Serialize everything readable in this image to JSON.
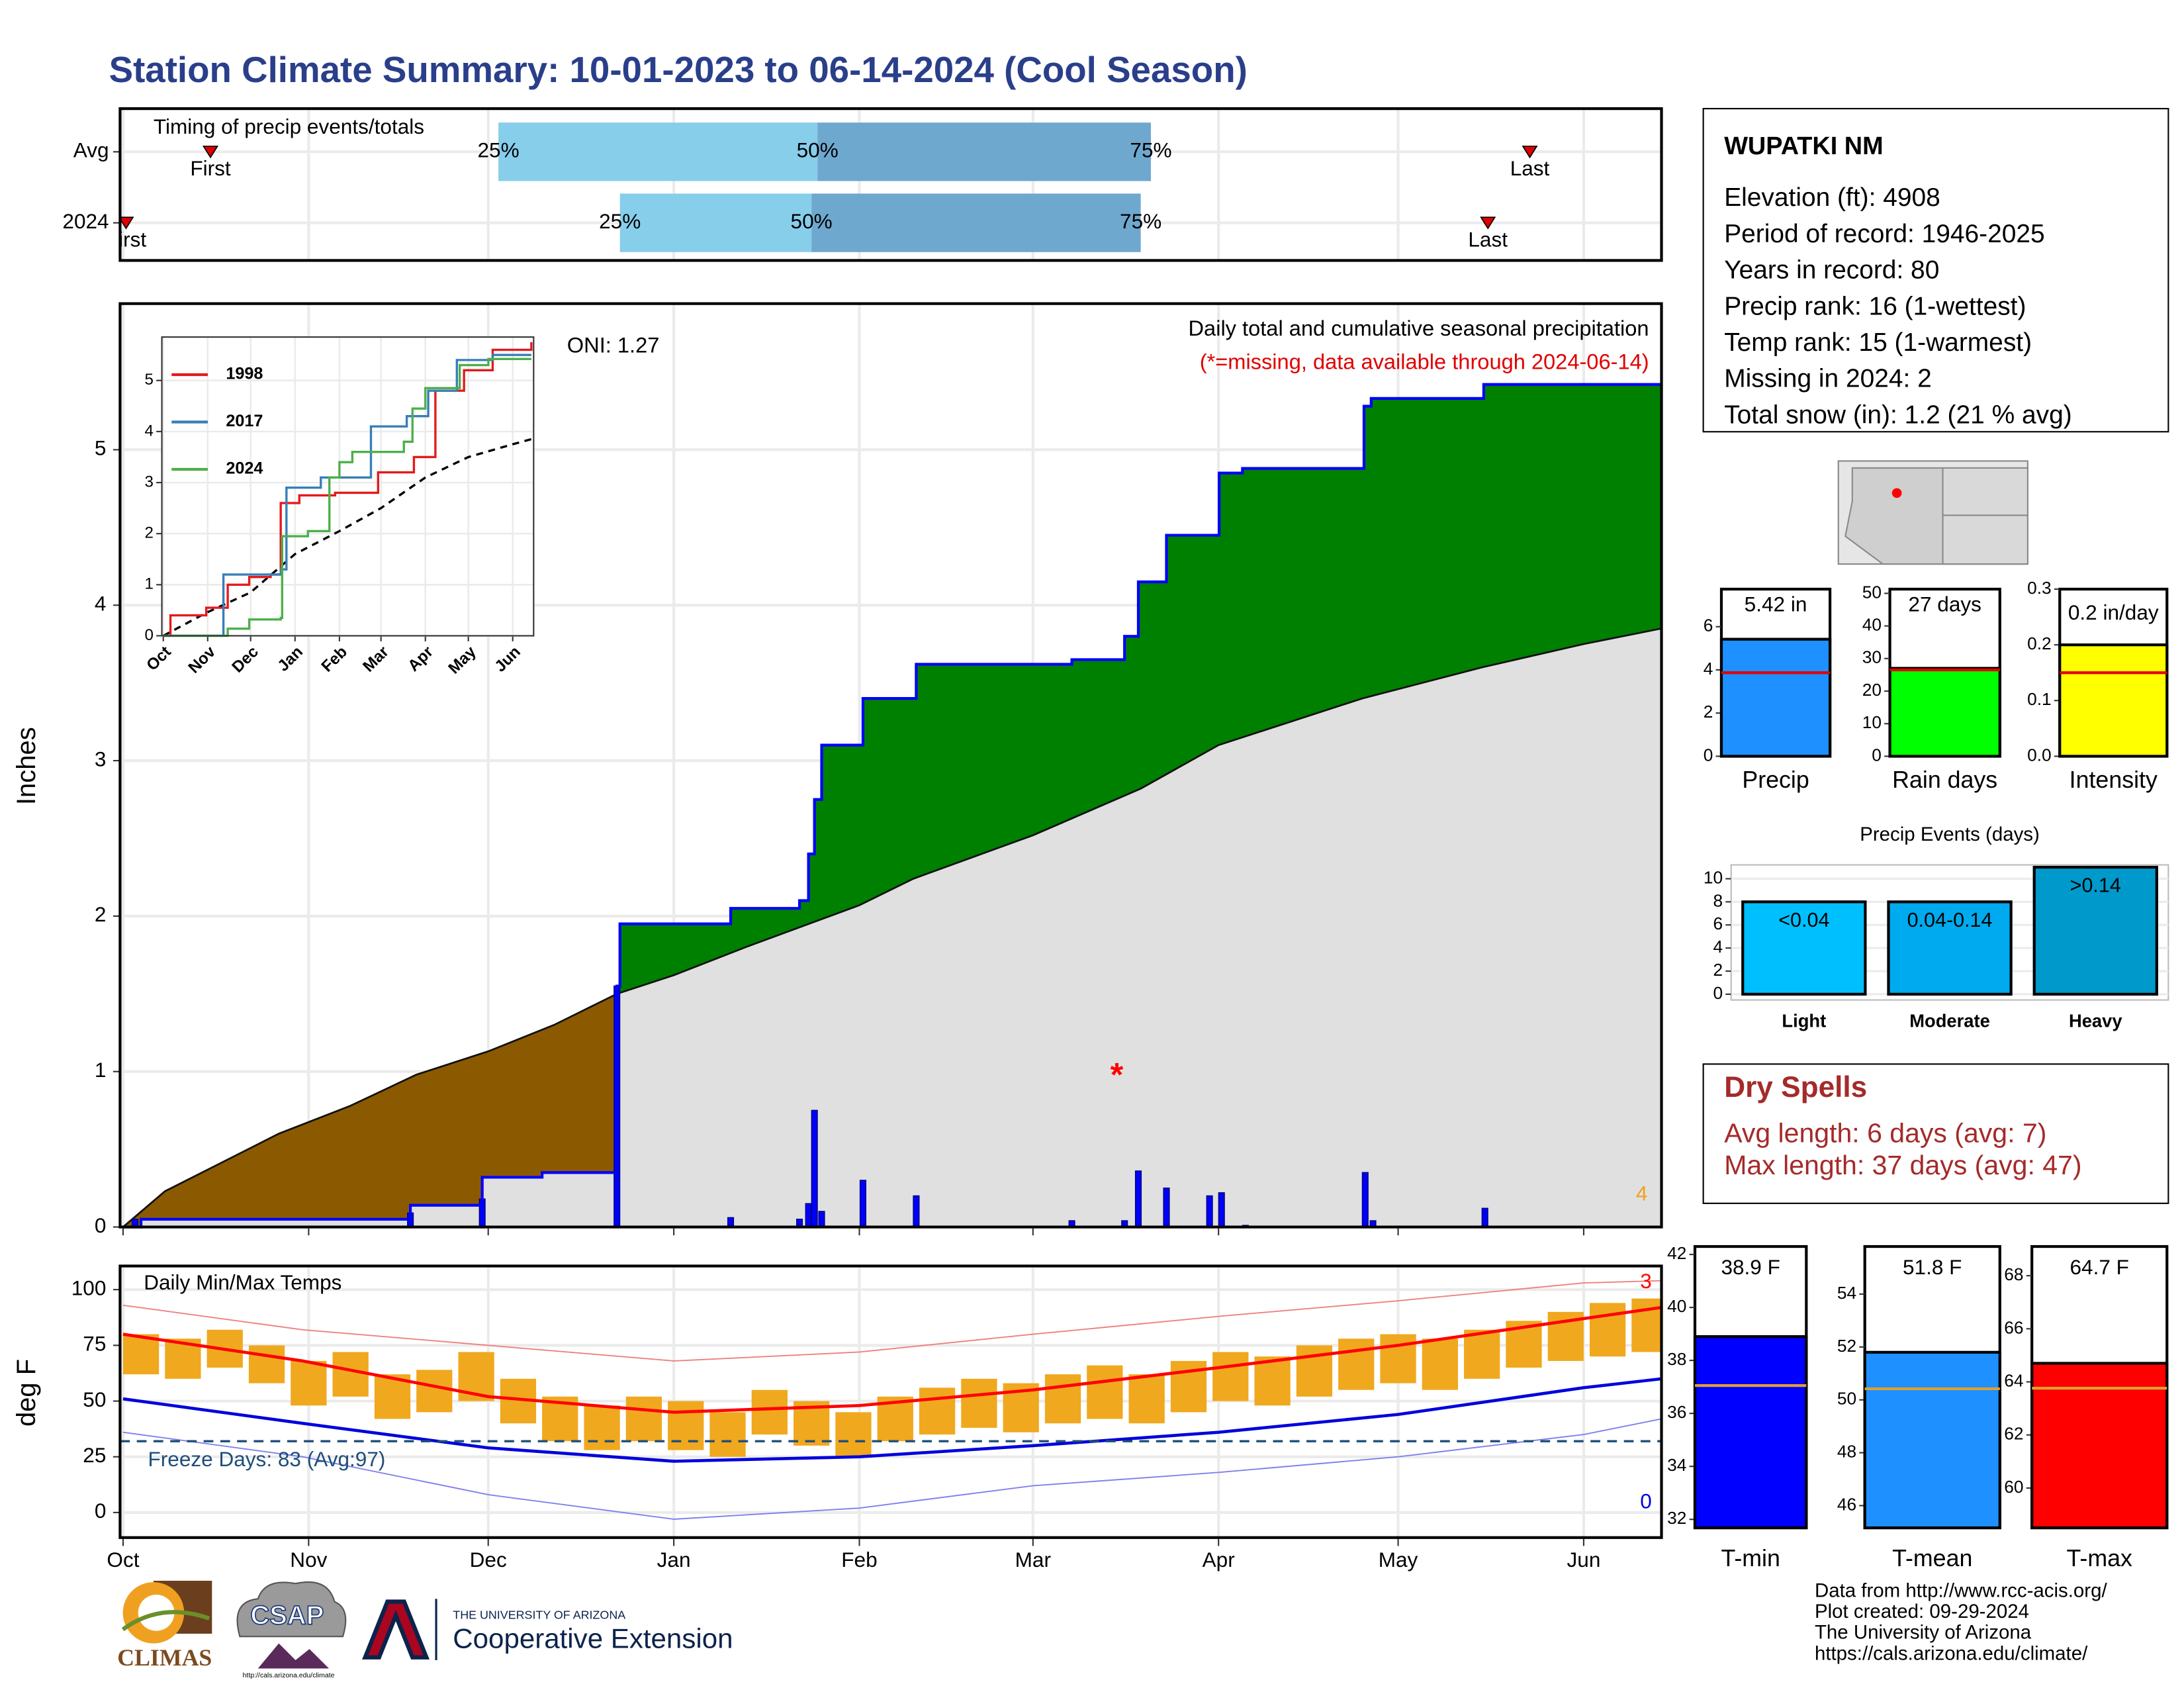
{
  "title": "Station Climate Summary: 10-01-2023 to 06-14-2024 (Cool Season)",
  "chart_data": [
    {
      "type": "range",
      "title": "Timing of precip events/totals",
      "categories": [
        "Avg",
        "2024"
      ],
      "first": [
        14.6,
        0.5
      ],
      "q25": [
        62.7,
        83
      ],
      "q50": [
        116,
        115
      ],
      "q75": [
        171.7,
        170
      ],
      "last": [
        235,
        228
      ],
      "labels": {
        "first": "First",
        "last": "Last",
        "q25": "25%",
        "q50": "50%",
        "q75": "75%"
      },
      "colors": {
        "low": "#87ceeb",
        "high": "#6fa8cf",
        "marker": "#e00000"
      },
      "xlim": [
        -0.5,
        257
      ],
      "xticks": [
        0,
        31,
        61,
        92,
        123,
        152,
        183,
        213,
        244
      ],
      "grid": true
    },
    {
      "type": "area",
      "title": "Daily total and cumulative seasonal precipitation",
      "subtitle": "(*=missing, data available through 2024-06-14)",
      "ylabel": "Inches",
      "annotation": "ONI: 1.27",
      "corner_note": "4",
      "xlim": [
        -0.5,
        257
      ],
      "xticks": [
        0,
        31,
        61,
        92,
        123,
        152,
        183,
        213,
        244
      ],
      "ylim": [
        0,
        5.94
      ],
      "yticks": [
        0,
        1,
        2,
        3,
        4,
        5
      ],
      "grid": true,
      "observed": {
        "x": [
          0,
          3,
          48,
          60,
          70,
          82.5,
          83,
          101.5,
          113,
          114.5,
          115.5,
          116.7,
          123.6,
          132.5,
          158.5,
          167.3,
          169.6,
          174.3,
          183.1,
          187,
          207.3,
          208.5,
          227.3,
          257
        ],
        "values": [
          0,
          0.05,
          0.14,
          0.32,
          0.35,
          1.55,
          1.95,
          2.05,
          2.1,
          2.4,
          2.75,
          3.1,
          3.4,
          3.62,
          3.65,
          3.8,
          4.15,
          4.45,
          4.85,
          4.88,
          5.28,
          5.33,
          5.42,
          5.42
        ]
      },
      "average": {
        "x": [
          0,
          7,
          26,
          38,
          49,
          61,
          72,
          82.5,
          92,
          104,
          123,
          132,
          152,
          170,
          183,
          207,
          227,
          244,
          257
        ],
        "values": [
          0,
          0.23,
          0.6,
          0.78,
          0.98,
          1.13,
          1.3,
          1.5,
          1.62,
          1.8,
          2.07,
          2.24,
          2.52,
          2.82,
          3.1,
          3.4,
          3.6,
          3.75,
          3.85
        ]
      },
      "daily": {
        "x": [
          2,
          48,
          60,
          82.5,
          101.5,
          113,
          114.5,
          115.5,
          116.7,
          123.6,
          132.5,
          158.5,
          167.3,
          169.6,
          174.3,
          181.5,
          183.5,
          187.5,
          207.5,
          208.8,
          227.5
        ],
        "values": [
          0.05,
          0.09,
          0.18,
          1.55,
          0.06,
          0.05,
          0.15,
          0.75,
          0.1,
          0.3,
          0.2,
          0.04,
          0.04,
          0.36,
          0.25,
          0.2,
          0.22,
          0.01,
          0.35,
          0.04,
          0.12
        ]
      },
      "missing": {
        "x": 166,
        "value": 1.0,
        "label": "*"
      },
      "colors": {
        "line": "#0000ff",
        "above": "#008000",
        "below": "#8b5a00",
        "average": "#e0e0e0",
        "bars": "#0000ff",
        "note": "#f0a020"
      }
    },
    {
      "type": "line",
      "xlim": [
        -1,
        258.6
      ],
      "ylim": [
        0,
        5.85
      ],
      "yticks": [
        0,
        1,
        2,
        3,
        4,
        5
      ],
      "grid": true,
      "xticks": [
        {
          "value": 0,
          "label": "Oct"
        },
        {
          "value": 31,
          "label": "Nov"
        },
        {
          "value": 61,
          "label": "Dec"
        },
        {
          "value": 92,
          "label": "Jan"
        },
        {
          "value": 123,
          "label": "Feb"
        },
        {
          "value": 152,
          "label": "Mar"
        },
        {
          "value": 183,
          "label": "Apr"
        },
        {
          "value": 213,
          "label": "May"
        },
        {
          "value": 244,
          "label": "Jun"
        }
      ],
      "series": [
        {
          "name": "1998",
          "color": "#e41a1c",
          "x": [
            0,
            5,
            30,
            45,
            60,
            75,
            82,
            95,
            120,
            150,
            175,
            190,
            210,
            230,
            257
          ],
          "values": [
            0,
            0.4,
            0.55,
            1.0,
            1.15,
            1.2,
            2.6,
            2.75,
            2.8,
            3.2,
            3.5,
            4.8,
            5.2,
            5.6,
            5.75
          ]
        },
        {
          "name": "2017",
          "color": "#377eb8",
          "x": [
            0,
            40,
            42,
            60,
            82,
            86,
            110,
            145,
            170,
            185,
            205,
            230,
            257
          ],
          "values": [
            0,
            0,
            1.2,
            1.2,
            1.3,
            2.9,
            3.1,
            4.1,
            4.3,
            4.8,
            5.4,
            5.5,
            5.5
          ]
        },
        {
          "name": "2024",
          "color": "#4daf4a",
          "x": [
            0,
            45,
            60,
            82,
            83,
            101,
            116,
            123,
            132,
            168,
            174,
            183,
            207,
            227,
            257
          ],
          "values": [
            0,
            0.14,
            0.32,
            0.35,
            1.95,
            2.05,
            3.1,
            3.4,
            3.6,
            3.8,
            4.45,
            4.85,
            5.3,
            5.42,
            5.42
          ]
        }
      ],
      "average": {
        "x": [
          0,
          30,
          61,
          92,
          123,
          152,
          183,
          213,
          244,
          257
        ],
        "values": [
          0,
          0.45,
          0.85,
          1.6,
          2.05,
          2.5,
          3.1,
          3.5,
          3.75,
          3.85
        ]
      }
    },
    {
      "type": "line",
      "title": "Daily Min/Max Temps",
      "ylabel": "deg F",
      "xlim": [
        -0.5,
        257
      ],
      "ylim": [
        -11.25,
        110.6
      ],
      "yticks": [
        0,
        25,
        50,
        75,
        100
      ],
      "grid": true,
      "xticks": [
        {
          "value": 0,
          "label": "Oct"
        },
        {
          "value": 31,
          "label": "Nov"
        },
        {
          "value": 61,
          "label": "Dec"
        },
        {
          "value": 92,
          "label": "Jan"
        },
        {
          "value": 123,
          "label": "Feb"
        },
        {
          "value": 152,
          "label": "Mar"
        },
        {
          "value": 183,
          "label": "Apr"
        },
        {
          "value": 213,
          "label": "May"
        },
        {
          "value": 244,
          "label": "Jun"
        }
      ],
      "daily": {
        "x": [
          0,
          7,
          14,
          21,
          28,
          35,
          42,
          49,
          56,
          63,
          70,
          77,
          84,
          91,
          98,
          105,
          112,
          119,
          126,
          133,
          140,
          147,
          154,
          161,
          168,
          175,
          182,
          189,
          196,
          203,
          210,
          217,
          224,
          231,
          238,
          245,
          252
        ],
        "high": [
          80,
          78,
          82,
          75,
          68,
          72,
          62,
          64,
          72,
          60,
          52,
          48,
          52,
          50,
          45,
          55,
          50,
          45,
          52,
          56,
          60,
          58,
          62,
          66,
          62,
          68,
          72,
          70,
          75,
          78,
          80,
          78,
          82,
          86,
          90,
          94,
          96
        ],
        "low": [
          62,
          60,
          65,
          58,
          48,
          52,
          42,
          45,
          50,
          40,
          32,
          28,
          32,
          28,
          25,
          35,
          30,
          25,
          32,
          35,
          38,
          36,
          40,
          42,
          40,
          45,
          50,
          48,
          52,
          55,
          58,
          55,
          60,
          65,
          68,
          70,
          72
        ]
      },
      "avg_max": {
        "x": [
          0,
          30,
          61,
          92,
          123,
          152,
          183,
          213,
          244,
          257
        ],
        "values": [
          80,
          68,
          52,
          45,
          48,
          55,
          65,
          75,
          87,
          92
        ]
      },
      "avg_min": {
        "x": [
          0,
          30,
          61,
          92,
          123,
          152,
          183,
          213,
          244,
          257
        ],
        "values": [
          51,
          40,
          29,
          23,
          25,
          30,
          36,
          44,
          56,
          60
        ]
      },
      "record_max": {
        "x": [
          0,
          30,
          61,
          92,
          123,
          152,
          183,
          213,
          244,
          257
        ],
        "values": [
          93,
          82,
          75,
          68,
          72,
          80,
          88,
          95,
          103,
          104
        ]
      },
      "record_min": {
        "x": [
          0,
          30,
          61,
          92,
          123,
          152,
          183,
          213,
          244,
          257
        ],
        "values": [
          36,
          25,
          8,
          -3,
          2,
          12,
          18,
          25,
          35,
          42
        ]
      },
      "freeze": {
        "value": 32,
        "label": "Freeze Days: 83 (Avg:97)"
      },
      "corner_high": "3",
      "corner_low": "0",
      "colors": {
        "bars": "#f0a81e",
        "max": "#ff0000",
        "min": "#0000dd",
        "record_max": "#f08080",
        "record_min": "#8080ee",
        "freeze": "#1f4e79"
      }
    },
    {
      "type": "bar",
      "categories": [
        "Precip"
      ],
      "values": [
        5.42
      ],
      "value_labels": [
        "5.42 in"
      ],
      "average": 3.87,
      "color": "#1e90ff",
      "avg_color": "#e00000",
      "ylim": [
        0,
        7.74
      ],
      "yticks": [
        0,
        2,
        4,
        6
      ]
    },
    {
      "type": "bar",
      "categories": [
        "Rain days"
      ],
      "values": [
        27
      ],
      "value_labels": [
        "27 days"
      ],
      "average": 26.5,
      "color": "#00ff00",
      "avg_color": "#e00000",
      "ylim": [
        0,
        51.3
      ],
      "yticks": [
        0,
        10,
        20,
        30,
        40,
        50
      ]
    },
    {
      "type": "bar",
      "categories": [
        "Intensity"
      ],
      "values": [
        0.2
      ],
      "value_labels": [
        "0.2 in/day"
      ],
      "average": 0.15,
      "color": "#ffff00",
      "avg_color": "#e00000",
      "ylim": [
        0,
        0.3
      ],
      "yticks": [
        {
          "value": 0,
          "label": "0.0"
        },
        0.1,
        0.2,
        0.3
      ]
    },
    {
      "type": "bar",
      "title": "Precip Events (days)",
      "categories": [
        "Light",
        "Moderate",
        "Heavy"
      ],
      "values": [
        8,
        8,
        11
      ],
      "value_labels": [
        "<0.04",
        "0.04-0.14",
        ">0.14"
      ],
      "colors": [
        "#00bfff",
        "#00aaee",
        "#0099cc"
      ],
      "ylim": [
        -0.5,
        11.2
      ],
      "yticks": [
        0,
        2,
        4,
        6,
        8,
        10
      ],
      "grid": true
    },
    {
      "type": "bar",
      "categories": [
        "T-min"
      ],
      "values": [
        38.9
      ],
      "value_labels": [
        "38.9 F"
      ],
      "average": 37.05,
      "color": "#0000ff",
      "avg_color": "#e0a030",
      "ylim": [
        31.68,
        42.3
      ],
      "yticks": [
        32,
        34,
        36,
        38,
        40,
        42
      ]
    },
    {
      "type": "bar",
      "categories": [
        "T-mean"
      ],
      "values": [
        51.8
      ],
      "value_labels": [
        "51.8 F"
      ],
      "average": 50.42,
      "color": "#1e90ff",
      "avg_color": "#e0a030",
      "ylim": [
        45.16,
        55.8
      ],
      "yticks": [
        46,
        48,
        50,
        52,
        54
      ]
    },
    {
      "type": "bar",
      "categories": [
        "T-max"
      ],
      "values": [
        64.7
      ],
      "value_labels": [
        "64.7 F"
      ],
      "average": 63.76,
      "color": "#ff0000",
      "avg_color": "#e0a030",
      "ylim": [
        58.5,
        69.1
      ],
      "yticks": [
        60,
        62,
        64,
        66,
        68
      ]
    }
  ],
  "station": {
    "name": "WUPATKI NM",
    "lines": [
      "Elevation (ft): 4908",
      "Period of record: 1946-2025",
      "Years in record: 80",
      "Precip rank: 16 (1-wettest)",
      "Temp rank: 15 (1-warmest)",
      "Missing in 2024: 2",
      "Total snow (in): 1.2 (21 % avg)"
    ]
  },
  "dry_spells": {
    "title": "Dry Spells",
    "lines": [
      "Avg length: 6 days (avg: 7)",
      "Max length: 37 days (avg: 47)"
    ]
  },
  "footer": {
    "lines": [
      "Data from http://www.rcc-acis.org/",
      "Plot created: 09-29-2024",
      "The University of Arizona",
      "https://cals.arizona.edu/climate/"
    ]
  },
  "logos": {
    "climas": "CLIMAS",
    "csap": "CSAP",
    "csap_url": "http://cals.arizona.edu/climate",
    "ua": "THE UNIVERSITY OF ARIZONA",
    "extension": "Cooperative Extension"
  }
}
